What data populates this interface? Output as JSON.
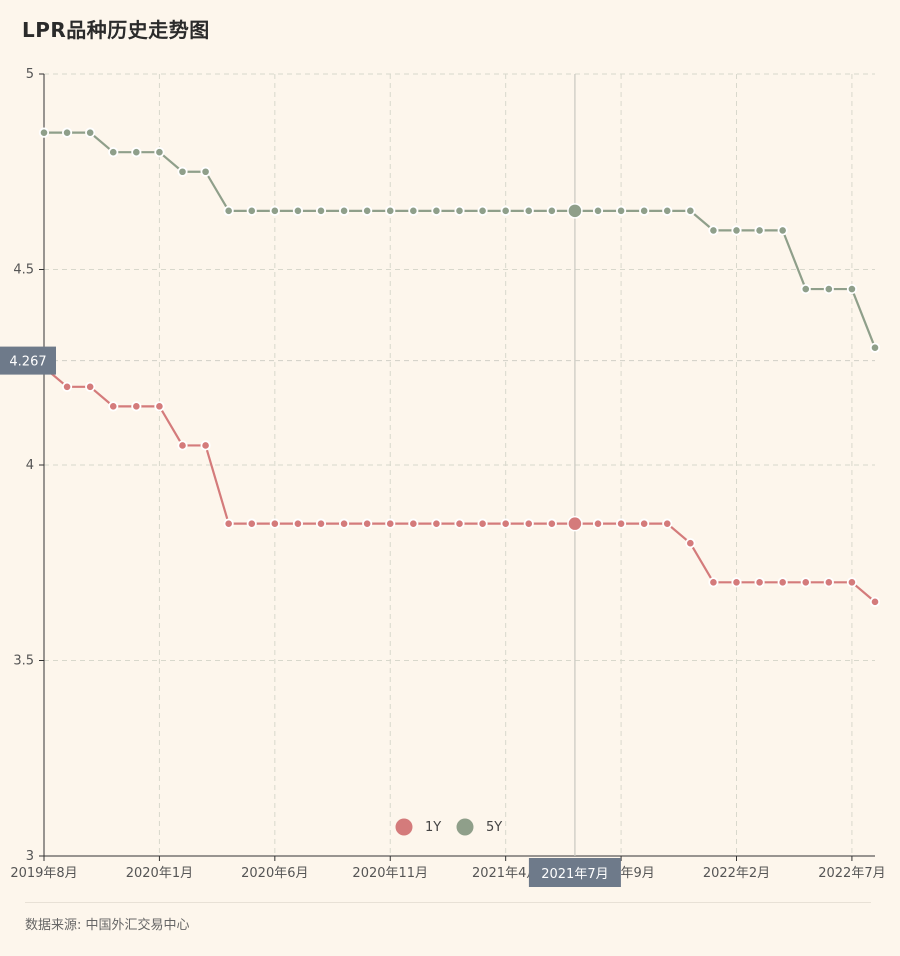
{
  "header": {
    "title": "LPR品种历史走势图"
  },
  "footer": {
    "source": "数据来源: 中国外汇交易中心"
  },
  "pointer": {
    "y_label": "4.267",
    "x_label": "2021年7月"
  },
  "colors": {
    "series_1y": "#d47b7b",
    "series_5y": "#8f9f8a",
    "background": "#fdf6ec",
    "tooltip": "#6e7a8a"
  },
  "chart_data": {
    "type": "line",
    "title": "LPR品种历史走势图",
    "x": [
      "2019年8月",
      "2019年9月",
      "2019年10月",
      "2019年11月",
      "2019年12月",
      "2020年1月",
      "2020年2月",
      "2020年3月",
      "2020年4月",
      "2020年5月",
      "2020年6月",
      "2020年7月",
      "2020年8月",
      "2020年9月",
      "2020年10月",
      "2020年11月",
      "2020年12月",
      "2021年1月",
      "2021年2月",
      "2021年3月",
      "2021年4月",
      "2021年5月",
      "2021年6月",
      "2021年7月",
      "2021年8月",
      "2021年9月",
      "2021年10月",
      "2021年11月",
      "2021年12月",
      "2022年1月",
      "2022年2月",
      "2022年3月",
      "2022年4月",
      "2022年5月",
      "2022年6月",
      "2022年7月",
      "2022年8月"
    ],
    "x_tick_labels": [
      "2019年8月",
      "2020年1月",
      "2020年6月",
      "2020年11月",
      "2021年4月",
      "2021年9月",
      "2022年2月",
      "2022年7月"
    ],
    "y_ticks": [
      "3",
      "3.5",
      "4",
      "4.5",
      "5"
    ],
    "ylim": [
      3,
      5
    ],
    "grid": true,
    "legend_position": "bottom-center",
    "series": [
      {
        "name": "1Y",
        "values": [
          4.25,
          4.2,
          4.2,
          4.15,
          4.15,
          4.15,
          4.05,
          4.05,
          3.85,
          3.85,
          3.85,
          3.85,
          3.85,
          3.85,
          3.85,
          3.85,
          3.85,
          3.85,
          3.85,
          3.85,
          3.85,
          3.85,
          3.85,
          3.85,
          3.85,
          3.85,
          3.85,
          3.85,
          3.8,
          3.7,
          3.7,
          3.7,
          3.7,
          3.7,
          3.7,
          3.7,
          3.65
        ]
      },
      {
        "name": "5Y",
        "values": [
          4.85,
          4.85,
          4.85,
          4.8,
          4.8,
          4.8,
          4.75,
          4.75,
          4.65,
          4.65,
          4.65,
          4.65,
          4.65,
          4.65,
          4.65,
          4.65,
          4.65,
          4.65,
          4.65,
          4.65,
          4.65,
          4.65,
          4.65,
          4.65,
          4.65,
          4.65,
          4.65,
          4.65,
          4.65,
          4.6,
          4.6,
          4.6,
          4.6,
          4.45,
          4.45,
          4.45,
          4.3
        ]
      }
    ]
  }
}
